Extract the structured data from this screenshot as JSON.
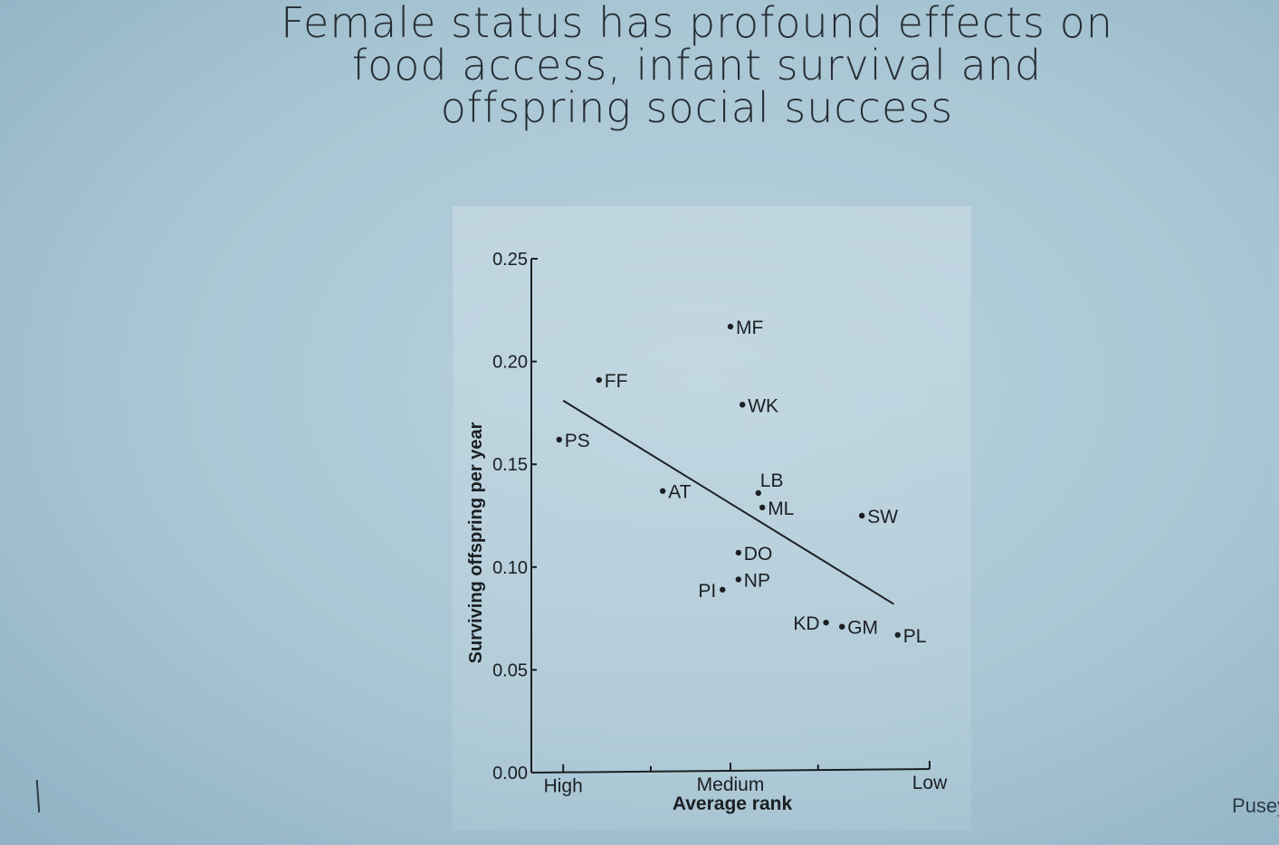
{
  "slide": {
    "title_lines": [
      "Female status has profound effects on",
      "food access, infant survival and",
      "offspring social success"
    ],
    "credit": "Pusey"
  },
  "chart_data": {
    "type": "scatter",
    "title": "",
    "xlabel": "Average rank",
    "ylabel": "Surviving offspring per year",
    "x_ticks": [
      {
        "value": 0.08,
        "label": "High"
      },
      {
        "value": 0.5,
        "label": "Medium"
      },
      {
        "value": 1.0,
        "label": "Low"
      }
    ],
    "xlim": [
      0,
      1
    ],
    "ylim": [
      0,
      0.25
    ],
    "y_ticks": [
      {
        "value": 0.25,
        "label": "0.25"
      },
      {
        "value": 0.2,
        "label": "0.20"
      },
      {
        "value": 0.15,
        "label": "0.15"
      },
      {
        "value": 0.1,
        "label": "0.10"
      },
      {
        "value": 0.05,
        "label": "0.05"
      },
      {
        "value": 0.0,
        "label": "0.00"
      }
    ],
    "points": [
      {
        "label": "PS",
        "x": 0.07,
        "y": 0.162,
        "label_side": "right"
      },
      {
        "label": "FF",
        "x": 0.17,
        "y": 0.191,
        "label_side": "right"
      },
      {
        "label": "AT",
        "x": 0.33,
        "y": 0.137,
        "label_side": "right"
      },
      {
        "label": "MF",
        "x": 0.5,
        "y": 0.217,
        "label_side": "right"
      },
      {
        "label": "WK",
        "x": 0.53,
        "y": 0.179,
        "label_side": "right"
      },
      {
        "label": "LB",
        "x": 0.57,
        "y": 0.136,
        "label_side": "above"
      },
      {
        "label": "ML",
        "x": 0.58,
        "y": 0.129,
        "label_side": "right"
      },
      {
        "label": "SW",
        "x": 0.83,
        "y": 0.125,
        "label_side": "right"
      },
      {
        "label": "DO",
        "x": 0.52,
        "y": 0.107,
        "label_side": "right"
      },
      {
        "label": "NP",
        "x": 0.52,
        "y": 0.094,
        "label_side": "right"
      },
      {
        "label": "PI",
        "x": 0.48,
        "y": 0.089,
        "label_side": "left"
      },
      {
        "label": "KD",
        "x": 0.74,
        "y": 0.073,
        "label_side": "left"
      },
      {
        "label": "GM",
        "x": 0.78,
        "y": 0.071,
        "label_side": "right"
      },
      {
        "label": "PL",
        "x": 0.92,
        "y": 0.067,
        "label_side": "right"
      }
    ],
    "trendline": {
      "x": [
        0.08,
        0.91
      ],
      "y": [
        0.181,
        0.082
      ]
    },
    "grid": false,
    "legend": "none"
  }
}
